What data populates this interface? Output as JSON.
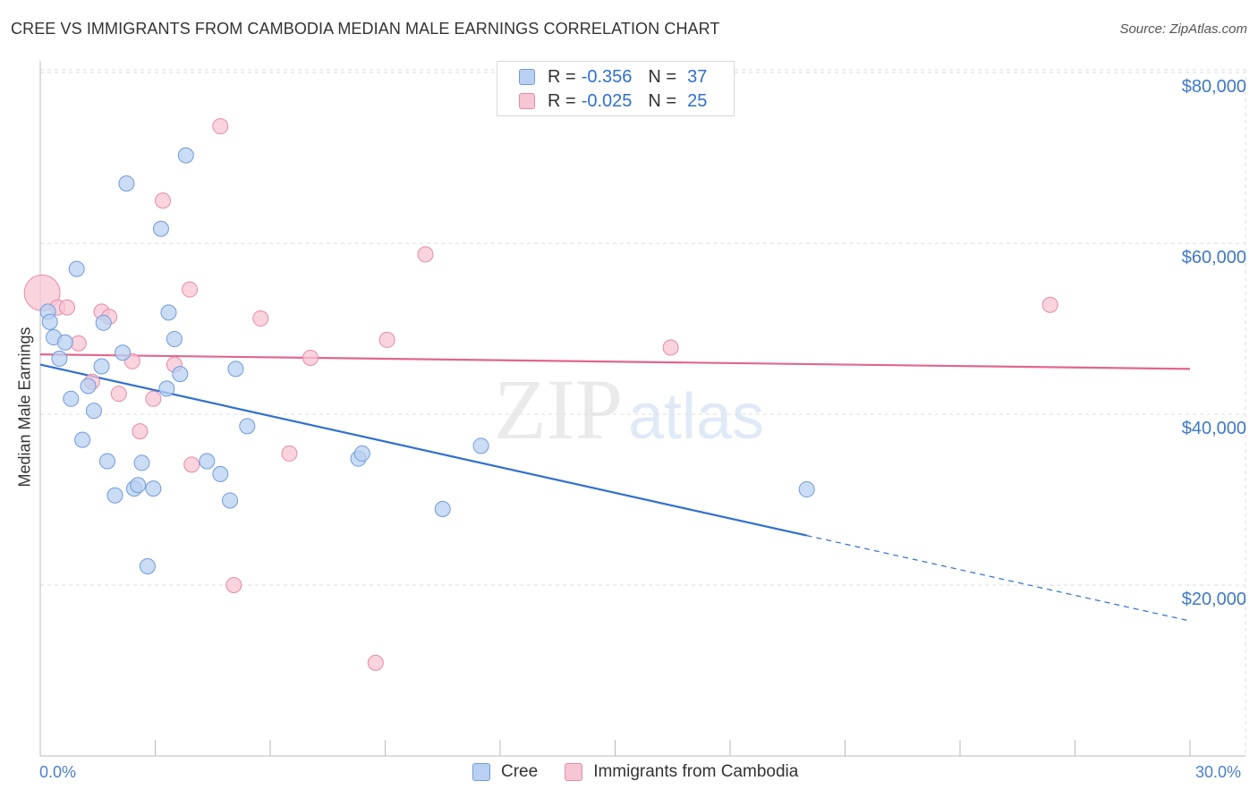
{
  "title": "CREE VS IMMIGRANTS FROM CAMBODIA MEDIAN MALE EARNINGS CORRELATION CHART",
  "source": "Source: ZipAtlas.com",
  "watermark": {
    "zip": "ZIP",
    "atlas": "atlas"
  },
  "colors": {
    "cree_fill": "#b9d0f2",
    "cree_stroke": "#6f9bdc",
    "cree_line": "#2f6fd1",
    "cambodia_fill": "#f7c6d4",
    "cambodia_stroke": "#e88aa6",
    "cambodia_line": "#e0668f",
    "grid": "#dddddd",
    "axis_text": "#3f78cc"
  },
  "legend": {
    "rows": [
      {
        "r_label": "R =",
        "r_value": "-0.356",
        "n_label": "N =",
        "n_value": "37"
      },
      {
        "r_label": "R =",
        "r_value": "-0.025",
        "n_label": "N =",
        "n_value": "25"
      }
    ]
  },
  "bottom_legend": {
    "cree": "Cree",
    "cambodia": "Immigrants from Cambodia"
  },
  "axes": {
    "y_label": "Median Male Earnings",
    "x_min_label": "0.0%",
    "x_max_label": "30.0%",
    "y_ticks": [
      "$80,000",
      "$60,000",
      "$40,000",
      "$20,000"
    ]
  },
  "chart_data": {
    "type": "scatter",
    "title": "CREE VS IMMIGRANTS FROM CAMBODIA MEDIAN MALE EARNINGS CORRELATION CHART",
    "xlabel": "",
    "ylabel": "Median Male Earnings",
    "xlim": [
      0,
      30
    ],
    "ylim": [
      0,
      82000
    ],
    "y_tick_values": [
      80000,
      60000,
      40000,
      20000
    ],
    "series": [
      {
        "name": "Cree",
        "r": -0.356,
        "n": 37,
        "trend": {
          "x0": 0,
          "y0": 45800,
          "x1": 20,
          "y1": 25800,
          "dash_to_x": 30,
          "dash_to_y": 15800
        },
        "points": [
          {
            "x": 0.2,
            "y": 52000
          },
          {
            "x": 0.25,
            "y": 50800
          },
          {
            "x": 0.35,
            "y": 49000
          },
          {
            "x": 0.5,
            "y": 46500
          },
          {
            "x": 0.65,
            "y": 48400
          },
          {
            "x": 0.8,
            "y": 41800
          },
          {
            "x": 0.95,
            "y": 57000
          },
          {
            "x": 1.1,
            "y": 37000
          },
          {
            "x": 1.25,
            "y": 43300
          },
          {
            "x": 1.4,
            "y": 40400
          },
          {
            "x": 1.6,
            "y": 45600
          },
          {
            "x": 1.65,
            "y": 50700
          },
          {
            "x": 1.75,
            "y": 34500
          },
          {
            "x": 1.95,
            "y": 30500
          },
          {
            "x": 2.15,
            "y": 47200
          },
          {
            "x": 2.25,
            "y": 67000
          },
          {
            "x": 2.45,
            "y": 31300
          },
          {
            "x": 2.55,
            "y": 31700
          },
          {
            "x": 2.65,
            "y": 34300
          },
          {
            "x": 2.8,
            "y": 22200
          },
          {
            "x": 2.95,
            "y": 31300
          },
          {
            "x": 3.15,
            "y": 61700
          },
          {
            "x": 3.3,
            "y": 43000
          },
          {
            "x": 3.35,
            "y": 51900
          },
          {
            "x": 3.5,
            "y": 48800
          },
          {
            "x": 3.65,
            "y": 44700
          },
          {
            "x": 3.8,
            "y": 70300
          },
          {
            "x": 4.35,
            "y": 34500
          },
          {
            "x": 4.7,
            "y": 33000
          },
          {
            "x": 4.95,
            "y": 29900
          },
          {
            "x": 5.1,
            "y": 45300
          },
          {
            "x": 5.4,
            "y": 38600
          },
          {
            "x": 8.3,
            "y": 34800
          },
          {
            "x": 8.4,
            "y": 35400
          },
          {
            "x": 10.5,
            "y": 28900
          },
          {
            "x": 11.5,
            "y": 36300
          },
          {
            "x": 20.0,
            "y": 31200
          }
        ]
      },
      {
        "name": "Immigrants from Cambodia",
        "r": -0.025,
        "n": 25,
        "trend": {
          "x0": 0,
          "y0": 47000,
          "x1": 30,
          "y1": 45300
        },
        "points": [
          {
            "x": 0.05,
            "y": 54200,
            "big": true
          },
          {
            "x": 0.45,
            "y": 52500
          },
          {
            "x": 0.7,
            "y": 52500
          },
          {
            "x": 1.0,
            "y": 48300
          },
          {
            "x": 1.35,
            "y": 43800
          },
          {
            "x": 1.6,
            "y": 52000
          },
          {
            "x": 1.8,
            "y": 51400
          },
          {
            "x": 2.05,
            "y": 42400
          },
          {
            "x": 2.4,
            "y": 46200
          },
          {
            "x": 2.6,
            "y": 38000
          },
          {
            "x": 2.95,
            "y": 41800
          },
          {
            "x": 3.2,
            "y": 65000
          },
          {
            "x": 3.5,
            "y": 45800
          },
          {
            "x": 3.9,
            "y": 54600
          },
          {
            "x": 3.95,
            "y": 34100
          },
          {
            "x": 4.7,
            "y": 73700
          },
          {
            "x": 5.05,
            "y": 20000
          },
          {
            "x": 5.75,
            "y": 51200
          },
          {
            "x": 6.5,
            "y": 35400
          },
          {
            "x": 7.05,
            "y": 46600
          },
          {
            "x": 8.75,
            "y": 10900
          },
          {
            "x": 9.05,
            "y": 48700
          },
          {
            "x": 10.05,
            "y": 58700
          },
          {
            "x": 16.45,
            "y": 47800
          },
          {
            "x": 26.35,
            "y": 52800
          }
        ]
      }
    ]
  }
}
